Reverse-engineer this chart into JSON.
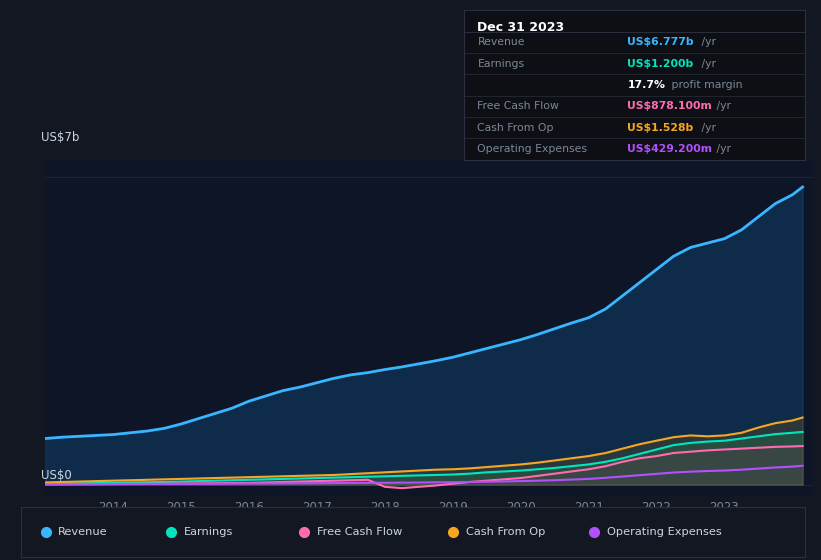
{
  "background_color": "#131722",
  "plot_bg_color": "#0d1526",
  "info_box_bg": "#0d0f14",
  "grid_color": "#1e2535",
  "text_color_dim": "#7a8899",
  "text_color_bright": "#ccd6e0",
  "ylabel_top": "US$7b",
  "ylabel_bot": "US$0",
  "xlim": [
    2013.0,
    2024.3
  ],
  "ylim": [
    -250000000.0,
    7400000000.0
  ],
  "xticks": [
    2014,
    2015,
    2016,
    2017,
    2018,
    2019,
    2020,
    2021,
    2022,
    2023
  ],
  "legend": [
    {
      "label": "Revenue",
      "color": "#38b6ff"
    },
    {
      "label": "Earnings",
      "color": "#00e5c0"
    },
    {
      "label": "Free Cash Flow",
      "color": "#ff6baf"
    },
    {
      "label": "Cash From Op",
      "color": "#f5a623"
    },
    {
      "label": "Operating Expenses",
      "color": "#b44fff"
    }
  ],
  "info_rows": [
    {
      "label": "Revenue",
      "value": "US$6.777b",
      "unit": " /yr",
      "value_color": "#38b6ff"
    },
    {
      "label": "Earnings",
      "value": "US$1.200b",
      "unit": " /yr",
      "value_color": "#00e5c0"
    },
    {
      "label": "",
      "value": "17.7%",
      "unit": " profit margin",
      "value_color": "#ffffff"
    },
    {
      "label": "Free Cash Flow",
      "value": "US$878.100m",
      "unit": " /yr",
      "value_color": "#ff6baf"
    },
    {
      "label": "Cash From Op",
      "value": "US$1.528b",
      "unit": " /yr",
      "value_color": "#f5a623"
    },
    {
      "label": "Operating Expenses",
      "value": "US$429.200m",
      "unit": " /yr",
      "value_color": "#b44fff"
    }
  ],
  "years": [
    2013.0,
    2013.25,
    2013.5,
    2013.75,
    2014.0,
    2014.25,
    2014.5,
    2014.75,
    2015.0,
    2015.25,
    2015.5,
    2015.75,
    2016.0,
    2016.25,
    2016.5,
    2016.75,
    2017.0,
    2017.25,
    2017.5,
    2017.75,
    2018.0,
    2018.25,
    2018.5,
    2018.75,
    2019.0,
    2019.25,
    2019.5,
    2019.75,
    2020.0,
    2020.25,
    2020.5,
    2020.75,
    2021.0,
    2021.25,
    2021.5,
    2021.75,
    2022.0,
    2022.25,
    2022.5,
    2022.75,
    2023.0,
    2023.25,
    2023.5,
    2023.75,
    2024.0,
    2024.15
  ],
  "revenue": [
    1050000000.0,
    1080000000.0,
    1100000000.0,
    1120000000.0,
    1140000000.0,
    1180000000.0,
    1220000000.0,
    1280000000.0,
    1380000000.0,
    1500000000.0,
    1620000000.0,
    1740000000.0,
    1900000000.0,
    2020000000.0,
    2140000000.0,
    2220000000.0,
    2320000000.0,
    2420000000.0,
    2500000000.0,
    2550000000.0,
    2620000000.0,
    2680000000.0,
    2750000000.0,
    2820000000.0,
    2900000000.0,
    3000000000.0,
    3100000000.0,
    3200000000.0,
    3300000000.0,
    3420000000.0,
    3550000000.0,
    3680000000.0,
    3800000000.0,
    4000000000.0,
    4300000000.0,
    4600000000.0,
    4900000000.0,
    5200000000.0,
    5400000000.0,
    5500000000.0,
    5600000000.0,
    5800000000.0,
    6100000000.0,
    6400000000.0,
    6600000000.0,
    6777000000.0
  ],
  "earnings": [
    20000000.0,
    25000000.0,
    30000000.0,
    35000000.0,
    40000000.0,
    50000000.0,
    55000000.0,
    60000000.0,
    70000000.0,
    80000000.0,
    90000000.0,
    100000000.0,
    110000000.0,
    120000000.0,
    130000000.0,
    140000000.0,
    150000000.0,
    160000000.0,
    170000000.0,
    180000000.0,
    190000000.0,
    200000000.0,
    210000000.0,
    220000000.0,
    230000000.0,
    250000000.0,
    280000000.0,
    300000000.0,
    320000000.0,
    350000000.0,
    380000000.0,
    420000000.0,
    460000000.0,
    520000000.0,
    600000000.0,
    700000000.0,
    800000000.0,
    900000000.0,
    950000000.0,
    980000000.0,
    1000000000.0,
    1050000000.0,
    1100000000.0,
    1150000000.0,
    1180000000.0,
    1200000000.0
  ],
  "free_cash_flow": [
    5000000.0,
    8000000.0,
    10000000.0,
    12000000.0,
    15000000.0,
    18000000.0,
    20000000.0,
    22000000.0,
    25000000.0,
    28000000.0,
    32000000.0,
    36000000.0,
    40000000.0,
    50000000.0,
    60000000.0,
    70000000.0,
    80000000.0,
    90000000.0,
    100000000.0,
    110000000.0,
    -50000000.0,
    -80000000.0,
    -50000000.0,
    -20000000.0,
    20000000.0,
    60000000.0,
    90000000.0,
    120000000.0,
    150000000.0,
    200000000.0,
    250000000.0,
    300000000.0,
    350000000.0,
    420000000.0,
    520000000.0,
    600000000.0,
    650000000.0,
    720000000.0,
    750000000.0,
    780000000.0,
    800000000.0,
    820000000.0,
    840000000.0,
    860000000.0,
    870000000.0,
    878100000.0
  ],
  "cash_from_op": [
    50000000.0,
    60000000.0,
    70000000.0,
    80000000.0,
    90000000.0,
    100000000.0,
    110000000.0,
    120000000.0,
    130000000.0,
    140000000.0,
    150000000.0,
    160000000.0,
    170000000.0,
    180000000.0,
    190000000.0,
    200000000.0,
    210000000.0,
    220000000.0,
    240000000.0,
    260000000.0,
    280000000.0,
    300000000.0,
    320000000.0,
    340000000.0,
    350000000.0,
    370000000.0,
    400000000.0,
    430000000.0,
    460000000.0,
    500000000.0,
    550000000.0,
    600000000.0,
    650000000.0,
    720000000.0,
    820000000.0,
    920000000.0,
    1000000000.0,
    1080000000.0,
    1120000000.0,
    1100000000.0,
    1120000000.0,
    1180000000.0,
    1300000000.0,
    1400000000.0,
    1460000000.0,
    1528000000.0
  ],
  "op_expenses": [
    5000000.0,
    6000000.0,
    7000000.0,
    8000000.0,
    10000000.0,
    12000000.0,
    14000000.0,
    15000000.0,
    16000000.0,
    18000000.0,
    20000000.0,
    22000000.0,
    24000000.0,
    26000000.0,
    28000000.0,
    30000000.0,
    32000000.0,
    35000000.0,
    38000000.0,
    40000000.0,
    42000000.0,
    45000000.0,
    48000000.0,
    52000000.0,
    55000000.0,
    60000000.0,
    65000000.0,
    72000000.0,
    80000000.0,
    90000000.0,
    100000000.0,
    115000000.0,
    130000000.0,
    155000000.0,
    185000000.0,
    215000000.0,
    245000000.0,
    275000000.0,
    295000000.0,
    310000000.0,
    320000000.0,
    340000000.0,
    365000000.0,
    390000000.0,
    410000000.0,
    429200000.0
  ]
}
